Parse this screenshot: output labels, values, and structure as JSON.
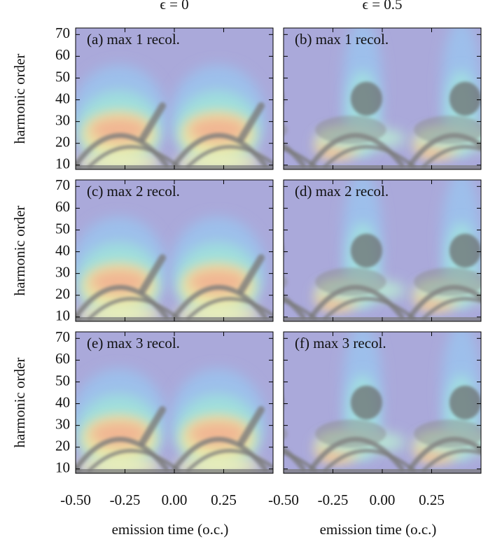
{
  "chart_data": [
    {
      "type": "heatmap",
      "title": "ϵ = 0",
      "annotation": "(a) max 1 recol.",
      "y_label": "harmonic order",
      "xlim": [
        -0.5,
        0.5
      ],
      "ylim": [
        8,
        73
      ],
      "yticks": [
        10,
        20,
        30,
        40,
        50,
        60,
        70
      ]
    },
    {
      "type": "heatmap",
      "title": "ϵ = 0.5",
      "annotation": "(b) max 1 recol.",
      "xlim": [
        -0.5,
        0.5
      ],
      "ylim": [
        8,
        73
      ]
    },
    {
      "type": "heatmap",
      "annotation": "(c) max 2 recol.",
      "y_label": "harmonic order",
      "xlim": [
        -0.5,
        0.5
      ],
      "ylim": [
        8,
        73
      ],
      "yticks": [
        10,
        20,
        30,
        40,
        50,
        60,
        70
      ]
    },
    {
      "type": "heatmap",
      "annotation": "(d) max 2 recol.",
      "xlim": [
        -0.5,
        0.5
      ],
      "ylim": [
        8,
        73
      ]
    },
    {
      "type": "heatmap",
      "annotation": "(e) max 3 recol.",
      "y_label": "harmonic order",
      "x_label": "emission time (o.c.)",
      "xlim": [
        -0.5,
        0.5
      ],
      "ylim": [
        8,
        73
      ],
      "yticks": [
        10,
        20,
        30,
        40,
        50,
        60,
        70
      ],
      "xticks": [
        {
          "value": -0.5,
          "label": "-0.50"
        },
        {
          "value": -0.25,
          "label": "-0.25"
        },
        {
          "value": 0,
          "label": "0.00"
        },
        0.25
      ]
    },
    {
      "type": "heatmap",
      "annotation": "(f) max 3 recol.",
      "x_label": "emission time (o.c.)",
      "xlim": [
        -0.5,
        0.5
      ],
      "ylim": [
        8,
        73
      ],
      "xticks": [
        {
          "value": -0.5,
          "label": "-0.50"
        },
        {
          "value": -0.25,
          "label": "-0.25"
        },
        {
          "value": 0,
          "label": "0.00"
        },
        0.25
      ]
    }
  ]
}
